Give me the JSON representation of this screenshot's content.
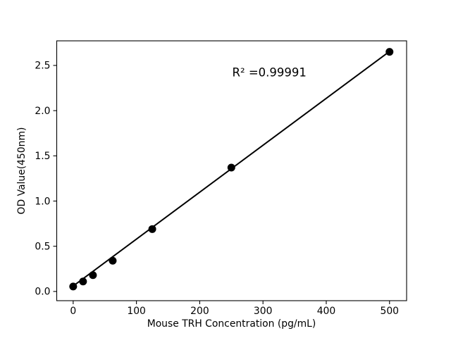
{
  "figure": {
    "background": "#ffffff"
  },
  "chart_data": {
    "type": "scatter",
    "title": "",
    "xlabel": "Mouse TRH Concentration (pg/mL)",
    "ylabel": "OD Value(450nm)",
    "x": [
      0,
      15.6,
      31.25,
      62.5,
      125,
      250,
      500
    ],
    "y": [
      0.055,
      0.11,
      0.18,
      0.34,
      0.69,
      1.37,
      2.65
    ],
    "fit_line": {
      "x": [
        0,
        500
      ],
      "y": [
        0.06,
        2.655
      ]
    },
    "annotation": {
      "text": "R² =0.99991",
      "r_squared": 0.99991
    },
    "xticks": [
      "0",
      "100",
      "200",
      "300",
      "400",
      "500"
    ],
    "yticks": [
      "0.0",
      "0.5",
      "1.0",
      "1.5",
      "2.0",
      "2.5"
    ],
    "xlim": [
      -26,
      527
    ],
    "ylim": [
      -0.102,
      2.772
    ],
    "grid": false,
    "legend": null,
    "marker_size_px": 11,
    "colors": {
      "marker": "#000000",
      "line": "#000000",
      "axis": "#000000",
      "text": "#000000",
      "background": "#ffffff"
    }
  }
}
